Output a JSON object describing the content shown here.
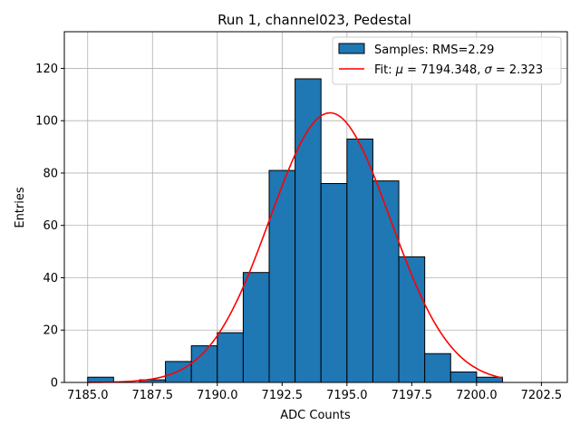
{
  "chart_data": {
    "type": "bar",
    "title": "Run 1, channel023, Pedestal",
    "xlabel": "ADC Counts",
    "ylabel": "Entries",
    "xlim": [
      7184.1,
      7203.5
    ],
    "ylim": [
      0,
      134
    ],
    "grid": true,
    "legend_position": "top-right",
    "xticks": [
      7185.0,
      7187.5,
      7190.0,
      7192.5,
      7195.0,
      7197.5,
      7200.0,
      7202.5
    ],
    "xtick_labels": [
      "7185.0",
      "7187.5",
      "7190.0",
      "7192.5",
      "7195.0",
      "7197.5",
      "7200.0",
      "7202.5"
    ],
    "yticks": [
      0,
      20,
      40,
      60,
      80,
      100,
      120
    ],
    "ytick_labels": [
      "0",
      "20",
      "40",
      "60",
      "80",
      "100",
      "120"
    ],
    "histogram": {
      "name": "Samples: RMS=2.29",
      "color": "#1f77b4",
      "edge_color": "#000000",
      "bin_edges": [
        7185,
        7186,
        7187,
        7188,
        7189,
        7190,
        7191,
        7192,
        7193,
        7194,
        7195,
        7196,
        7197,
        7198,
        7199,
        7200,
        7201
      ],
      "counts": [
        2,
        0,
        1,
        8,
        14,
        19,
        42,
        81,
        116,
        76,
        93,
        77,
        48,
        11,
        4,
        2
      ]
    },
    "fit": {
      "name": "Fit: μ = 7194.348, σ = 2.323",
      "label_prefix": "Fit: ",
      "mu_symbol": "μ",
      "mu_text": " = 7194.348, ",
      "sigma_symbol": "σ",
      "sigma_text": " = 2.323",
      "color": "#ff0000",
      "mu": 7194.348,
      "sigma": 2.323,
      "amplitude": 103,
      "x_range": [
        7185,
        7201
      ]
    }
  }
}
